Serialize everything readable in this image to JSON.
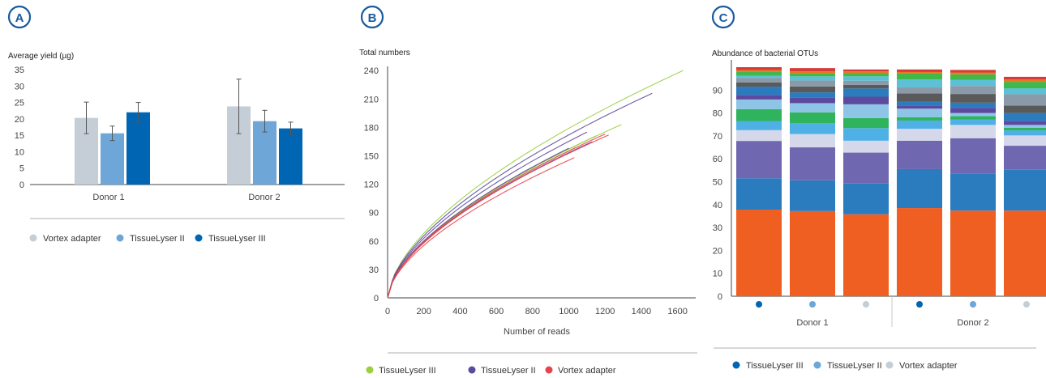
{
  "colors": {
    "badge": "#1a5aa0",
    "vortex": "#c5ced6",
    "tl2_bar": "#6ea6d8",
    "tl3_bar": "#0066b3",
    "green": "#9bcf3f",
    "purple": "#5b4a9e",
    "red": "#e8424a"
  },
  "chart_data": [
    {
      "panel": "A",
      "type": "bar",
      "ylabel": "Average yield (µg)",
      "ylim": [
        0,
        35
      ],
      "yticks": [
        "0",
        "5",
        "10",
        "15",
        "20",
        "25",
        "30",
        "35"
      ],
      "categories": [
        "Donor 1",
        "Donor 2"
      ],
      "series": [
        {
          "name": "Vortex adapter",
          "color": "#c5ced6",
          "values": [
            20.3,
            23.8
          ],
          "errors": [
            4.8,
            8.3
          ]
        },
        {
          "name": "TissueLyser II",
          "color": "#6ea6d8",
          "values": [
            15.6,
            19.3
          ],
          "errors": [
            2.2,
            3.3
          ]
        },
        {
          "name": "TissueLyser III",
          "color": "#0066b3",
          "values": [
            22.0,
            17.1
          ],
          "errors": [
            3.0,
            1.9
          ]
        }
      ],
      "legend": [
        "Vortex adapter",
        "TissueLyser II",
        "TissueLyser III"
      ],
      "legend_position": "bottom"
    },
    {
      "panel": "B",
      "type": "line",
      "ylabel": "Total numbers",
      "xlabel": "Number of reads",
      "xlim": [
        0,
        1700
      ],
      "ylim": [
        0,
        240
      ],
      "xticks": [
        "0",
        "200",
        "400",
        "600",
        "800",
        "1000",
        "1200",
        "1400",
        "1600"
      ],
      "yticks": [
        "0",
        "30",
        "60",
        "90",
        "120",
        "150",
        "180",
        "210",
        "240"
      ],
      "series": [
        {
          "name": "TissueLyser III",
          "color": "#9bcf3f",
          "curves": [
            [
              1630,
              240,
              0.6
            ],
            [
              1290,
              183,
              0.6
            ],
            [
              1150,
              171,
              0.6
            ],
            [
              1040,
              159,
              0.6
            ]
          ]
        },
        {
          "name": "TissueLyser II",
          "color": "#5b4a9e",
          "curves": [
            [
              1460,
              216,
              0.6
            ],
            [
              1100,
              175,
              0.6
            ],
            [
              1130,
              165,
              0.6
            ],
            [
              1000,
              158,
              0.6
            ]
          ]
        },
        {
          "name": "Vortex adapter",
          "color": "#e8424a",
          "curves": [
            [
              1030,
              148,
              0.6
            ],
            [
              1200,
              173,
              0.6
            ],
            [
              1220,
              172,
              0.6
            ]
          ]
        }
      ],
      "legend": [
        "TissueLyser III",
        "TissueLyser II",
        "Vortex adapter"
      ],
      "legend_position": "bottom"
    },
    {
      "panel": "C",
      "type": "bar",
      "stacked": true,
      "title": "Abundance of bacterial OTUs",
      "ylim": [
        0,
        100
      ],
      "yticks": [
        "0",
        "10",
        "20",
        "30",
        "40",
        "50",
        "60",
        "70",
        "80",
        "90"
      ],
      "groups": [
        "Donor 1",
        "Donor 2"
      ],
      "bar_markers": [
        "#0066b3",
        "#6ea6d8",
        "#c5ced6",
        "#0066b3",
        "#6ea6d8",
        "#c5ced6"
      ],
      "segment_colors": [
        "#f05f22",
        "#2b7bbf",
        "#6f68b0",
        "#d5d8ea",
        "#4fb0e6",
        "#2fb35c",
        "#8ec5e6",
        "#5b4a9e",
        "#2b7bbf",
        "#5a5a5a",
        "#8a9aa8",
        "#5cc0d6",
        "#44b74a",
        "#e87722",
        "#d63a3a"
      ],
      "bars": [
        [
          37.8,
          13.7,
          16.3,
          4.7,
          4.0,
          5.2,
          4.2,
          2.0,
          3.6,
          1.8,
          2.0,
          1.0,
          1.6,
          0.8,
          1.3
        ],
        [
          37.2,
          13.4,
          14.4,
          5.8,
          4.8,
          4.7,
          4.0,
          2.3,
          2.4,
          2.6,
          2.6,
          1.8,
          1.4,
          0.8,
          1.4
        ],
        [
          35.8,
          13.4,
          13.5,
          5.2,
          5.5,
          4.4,
          6.0,
          3.3,
          3.6,
          1.6,
          1.8,
          1.9,
          1.5,
          0.7,
          0.8
        ],
        [
          38.5,
          17.0,
          12.4,
          5.2,
          3.6,
          1.4,
          3.8,
          1.4,
          1.7,
          3.5,
          2.8,
          3.3,
          2.6,
          0.7,
          1.1
        ],
        [
          37.4,
          16.0,
          15.6,
          5.8,
          2.4,
          1.4,
          1.4,
          2.2,
          2.3,
          3.8,
          3.5,
          2.6,
          2.5,
          0.8,
          1.1
        ],
        [
          37.4,
          17.8,
          10.5,
          4.5,
          2.2,
          1.2,
          1.2,
          1.8,
          3.4,
          3.2,
          5.0,
          2.6,
          2.8,
          1.0,
          1.2
        ]
      ],
      "legend": [
        "TissueLyser III",
        "TissueLyser II",
        "Vortex adapter"
      ],
      "legend_position": "bottom"
    }
  ]
}
